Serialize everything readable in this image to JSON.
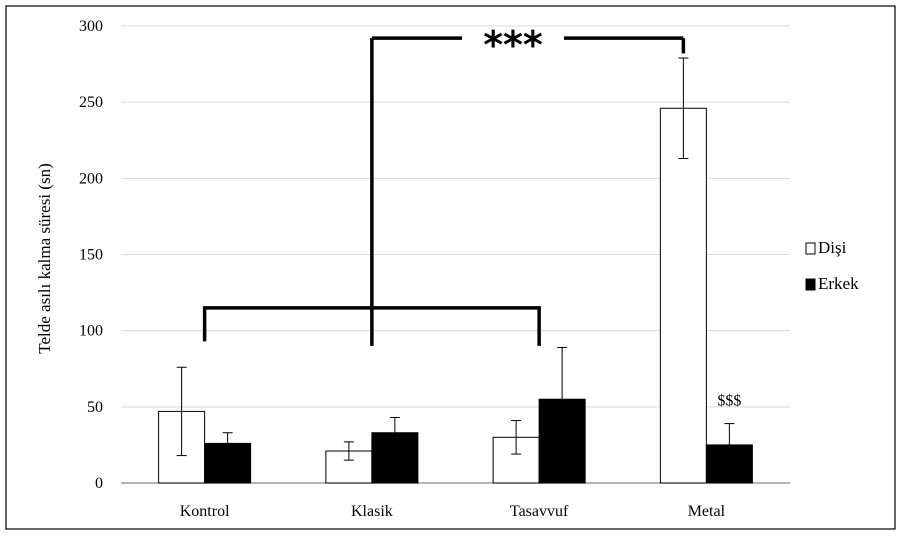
{
  "chart_data": {
    "type": "bar",
    "categories": [
      "Kontrol",
      "Klasik",
      "Tasavvuf",
      "Metal"
    ],
    "series": [
      {
        "name": "Dişi",
        "values": [
          47,
          21,
          30,
          246
        ],
        "errors": [
          29,
          6,
          11,
          33
        ],
        "color": "#ffffff"
      },
      {
        "name": "Erkek",
        "values": [
          26,
          33,
          55,
          25
        ],
        "errors": [
          7,
          10,
          34,
          14
        ],
        "color": "#000000"
      }
    ],
    "ylabel": "Telde asılı kalma süresi (sn)",
    "xlabel": "",
    "ylim": [
      0,
      300
    ],
    "yticks": [
      0,
      50,
      100,
      150,
      200,
      250,
      300
    ],
    "grid": true,
    "legend_position": "right",
    "annotations": {
      "significance": "***",
      "metal_erkek": "$$$"
    }
  }
}
